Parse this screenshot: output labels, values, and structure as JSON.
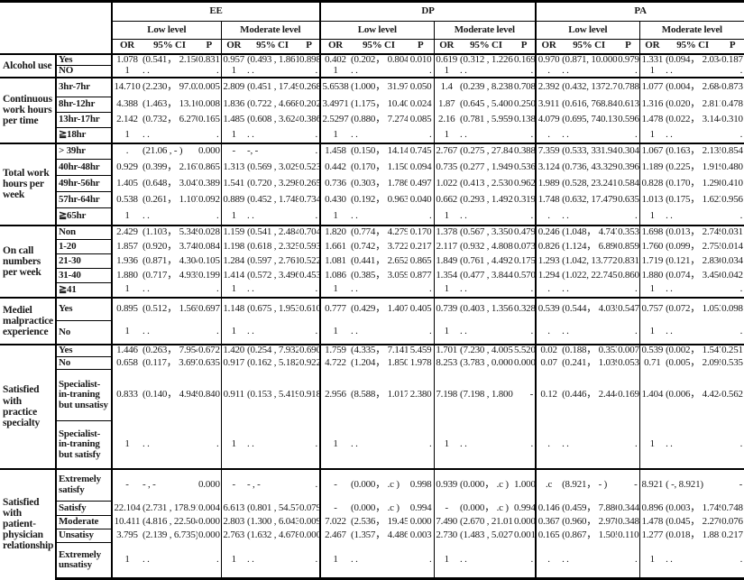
{
  "header": {
    "groups": [
      {
        "name": "EE",
        "levels": [
          "Low level",
          "Moderate level"
        ]
      },
      {
        "name": "DP",
        "levels": [
          "Low level",
          "Moderate level"
        ]
      },
      {
        "name": "PA",
        "levels": [
          "Low level",
          "Moderate level"
        ]
      }
    ],
    "col_headers": [
      "OR",
      "95% CI",
      "P"
    ]
  },
  "sections": [
    {
      "label": "Alcohol use",
      "rows": [
        {
          "sub": "Yes",
          "cells": [
            [
              "1.078",
              "(0.541， 2.150)",
              "0.831"
            ],
            [
              "0.957",
              "(0.493 , 1.861)",
              "0.898"
            ],
            [
              "0.402",
              "(0.202， 0.804)",
              "0.010"
            ],
            [
              "0.619",
              "(0.312 , 1.226)",
              "0.169"
            ],
            [
              "0.970",
              "(0.871, 10.000)",
              "0.979"
            ],
            [
              "1.331",
              "(0.094， 2.034)",
              "0.187"
            ]
          ]
        },
        {
          "sub": "NO",
          "cells": [
            [
              "1",
              ".  .",
              "."
            ],
            [
              "1",
              ".  .",
              "."
            ],
            [
              "1",
              ".  .",
              "."
            ],
            [
              "1",
              ".  .",
              "."
            ],
            [
              ".",
              ".  .",
              "."
            ],
            [
              "1",
              ".  .",
              "."
            ]
          ]
        }
      ]
    },
    {
      "label": "Continuous work hours per time",
      "rows": [
        {
          "sub": "3hr-7hr",
          "cells": [
            [
              "14.710",
              "(2.230， 97.02)",
              "0.005"
            ],
            [
              "2.809",
              "(0.451 , 17.49)",
              "0.268"
            ],
            [
              "5.6538",
              "(1.000， 31.979)",
              "0.050"
            ],
            [
              "1.4",
              "(0.239 , 8.238)",
              "0.708"
            ],
            [
              "2.392",
              "(0.432, 1372.7)",
              "0.788"
            ],
            [
              "1.077",
              "(0.004， 2.684)",
              "0.873"
            ]
          ]
        },
        {
          "sub": "8hr-12hr",
          "cells": [
            [
              "4.388",
              "(1.463， 13.16)",
              "0.008"
            ],
            [
              "1.836",
              "(0.722 , 4.668)",
              "0.202"
            ],
            [
              "3.4971",
              "(1.175， 10.407)",
              "0.024"
            ],
            [
              "1.87",
              "(0.645 , 5.400)",
              "0.250"
            ],
            [
              "3.911",
              "(0.616, 768.84)",
              "0.613"
            ],
            [
              "1.316",
              "(0.020， 2.811)",
              "0.478"
            ]
          ]
        },
        {
          "sub": "13hr-17hr",
          "cells": [
            [
              "2.142",
              "(0.732， 6.270)",
              "0.165"
            ],
            [
              "1.485",
              "(0.608 , 3.624)",
              "0.386"
            ],
            [
              "2.5297",
              "(0.880， 7.274)",
              "0.085"
            ],
            [
              "2.16",
              "(0.781 , 5.959)",
              "0.138"
            ],
            [
              "4.079",
              "(0.695, 740.13)",
              "0.596"
            ],
            [
              "1.478",
              "(0.022， 3.144)",
              "0.310"
            ]
          ]
        },
        {
          "sub": "≧18hr",
          "cells": [
            [
              "1",
              ".  .",
              "."
            ],
            [
              "1",
              ".  .",
              "."
            ],
            [
              "1",
              ".  .",
              "."
            ],
            [
              "1",
              ".  .",
              "."
            ],
            [
              ".",
              ".  .",
              "."
            ],
            [
              "1",
              ".  .",
              "."
            ]
          ]
        }
      ]
    },
    {
      "label": "Total work hours per week",
      "rows": [
        {
          "sub": "> 39hr",
          "cells": [
            [
              ".",
              "(21.06 ,  -  )",
              "0.000"
            ],
            [
              "-",
              "-,   -",
              "."
            ],
            [
              "1.458",
              "(0.150， 14.14)",
              "0.745"
            ],
            [
              "2.767",
              "(0.275 , 27.84)",
              "0.388"
            ],
            [
              "7.359",
              "(0.533, 331.94)",
              "0.304"
            ],
            [
              "1.067",
              "(0.163， 2.135)",
              "0.854"
            ]
          ]
        },
        {
          "sub": "40hr-48hr",
          "cells": [
            [
              "0.929",
              "(0.399， 2.167)",
              "0.865"
            ],
            [
              "1.313",
              "(0.569 , 3.029)",
              "0.523"
            ],
            [
              "0.442",
              "(0.170， 1.150)",
              "0.094"
            ],
            [
              "0.735",
              "(0.277 , 1.949)",
              "0.536"
            ],
            [
              "3.124",
              "(0.736, 43.329)",
              "0.396"
            ],
            [
              "1.189",
              "(0.225， 1.919)",
              "0.480"
            ]
          ]
        },
        {
          "sub": "49hr-56hr",
          "cells": [
            [
              "1.405",
              "(0.648， 3.047)",
              "0.389"
            ],
            [
              "1.541",
              "(0.720 , 3.298)",
              "0.265"
            ],
            [
              "0.736",
              "(0.303， 1.786)",
              "0.497"
            ],
            [
              "1.022",
              "(0.413 , 2.530)",
              "0.962"
            ],
            [
              "1.989",
              "(0.528, 23.241)",
              "0.584"
            ],
            [
              "0.828",
              "(0.170， 1.298)",
              "0.410"
            ]
          ]
        },
        {
          "sub": "57hr-64hr",
          "cells": [
            [
              "0.538",
              "(0.261， 1.107)",
              "0.092"
            ],
            [
              "0.889",
              "(0.452 , 1.748)",
              "0.734"
            ],
            [
              "0.430",
              "(0.192， 0.963)",
              "0.040"
            ],
            [
              "0.662",
              "(0.293 , 1.492)",
              "0.319"
            ],
            [
              "1.748",
              "(0.632, 17.479)",
              "0.635"
            ],
            [
              "1.013",
              "(0.175， 1.623)",
              "0.956"
            ]
          ]
        },
        {
          "sub": "≧65hr",
          "cells": [
            [
              "1",
              ".  .",
              "."
            ],
            [
              "1",
              ".  .",
              "."
            ],
            [
              "1",
              ".  .",
              "."
            ],
            [
              "1",
              ".  .",
              "."
            ],
            [
              ".",
              ".  .",
              "."
            ],
            [
              "1",
              ".  .",
              "."
            ]
          ]
        }
      ]
    },
    {
      "label": "On call numbers per week",
      "rows": [
        {
          "sub": "Non",
          "cells": [
            [
              "2.429",
              "(1.103， 5.349)",
              "0.028"
            ],
            [
              "1.159",
              "(0.541 , 2.484)",
              "0.704"
            ],
            [
              "1.820",
              "(0.774， 4.279)",
              "0.170"
            ],
            [
              "1.378",
              "(0.567 , 3.350)",
              "0.479"
            ],
            [
              "0.246",
              "(1.048， 4.747)",
              "0.353"
            ],
            [
              "1.698",
              "(0.013， 2.749)",
              "0.031"
            ]
          ]
        },
        {
          "sub": "1-20",
          "cells": [
            [
              "1.857",
              "(0.920， 3.748)",
              "0.084"
            ],
            [
              "1.198",
              "(0.618 , 2.325)",
              "0.593"
            ],
            [
              "1.661",
              "(0.742， 3.722)",
              "0.217"
            ],
            [
              "2.117",
              "(0.932 , 4.808)",
              "0.073"
            ],
            [
              "0.826",
              "(1.124， 6.890)",
              "0.859"
            ],
            [
              "1.760",
              "(0.099， 2.755)",
              "0.014"
            ]
          ]
        },
        {
          "sub": "21-30",
          "cells": [
            [
              "1.936",
              "(0.871， 4.304)",
              "0.105"
            ],
            [
              "1.284",
              "(0.597 , 2.761)",
              "0.522"
            ],
            [
              "1.081",
              "(0.441， 2.652)",
              "0.865"
            ],
            [
              "1.849",
              "(0.761 , 4.492)",
              "0.175"
            ],
            [
              "1.293",
              "(1.042, 13.772)",
              "0.831"
            ],
            [
              "1.719",
              "(0.121， 2.836)",
              "0.034"
            ]
          ]
        },
        {
          "sub": "31-40",
          "cells": [
            [
              "1.880",
              "(0.717， 4.935)",
              "0.199"
            ],
            [
              "1.414",
              "(0.572 , 3.496)",
              "0.453"
            ],
            [
              "1.086",
              "(0.385， 3.059)",
              "0.877"
            ],
            [
              "1.354",
              "(0.477 , 3.844)",
              "0.570"
            ],
            [
              "1.294",
              "(1.022, 22.745)",
              "0.860"
            ],
            [
              "1.880",
              "(0.074， 3.456)",
              "0.042"
            ]
          ]
        },
        {
          "sub": "≧41",
          "cells": [
            [
              "1",
              ".  .",
              "."
            ],
            [
              "1",
              ".  .",
              "."
            ],
            [
              "1",
              ".  .",
              "."
            ],
            [
              "1",
              ".  .",
              "."
            ],
            [
              ".",
              ".  .",
              "."
            ],
            [
              "1",
              ".  .",
              "."
            ]
          ]
        }
      ]
    },
    {
      "label": "Mediel malpractice experience",
      "rows": [
        {
          "sub": "Yes",
          "cells": [
            [
              "0.895",
              "(0.512， 1.565)",
              "0.697"
            ],
            [
              "1.148",
              "(0.675 , 1.953)",
              "0.610"
            ],
            [
              "0.777",
              "(0.429， 1.407)",
              "0.405"
            ],
            [
              "0.739",
              "(0.403 , 1.356)",
              "0.328"
            ],
            [
              "0.539",
              "(0.544， 4.035)",
              "0.547"
            ],
            [
              "0.757",
              "(0.072， 1.053)",
              "0.098"
            ]
          ]
        },
        {
          "sub": "No",
          "cells": [
            [
              "1",
              ".  .",
              "."
            ],
            [
              "1",
              ".  .",
              "."
            ],
            [
              "1",
              ".  .",
              "."
            ],
            [
              "1",
              ".  .",
              "."
            ],
            [
              ".",
              ".  .",
              "."
            ],
            [
              "1",
              ".  .",
              "."
            ]
          ]
        }
      ]
    },
    {
      "label": "Satisfied with practice specialty",
      "rows": [
        {
          "sub": "Yes",
          "cells": [
            [
              "1.446",
              "(0.263， 7.954)",
              "0.672"
            ],
            [
              "1.420",
              "(0.254 , 7.932)",
              "0.690"
            ],
            [
              "1.759",
              "(4.335， 7.141)",
              "5.459"
            ],
            [
              "1.701",
              "(7.230 , 4.005)",
              "5.520"
            ],
            [
              "0.02",
              "(0.188， 0.353)",
              "0.007"
            ],
            [
              "0.539",
              "(0.002， 1.547)",
              "0.251"
            ]
          ]
        },
        {
          "sub": "No",
          "cells": [
            [
              "0.658",
              "(0.117， 3.697)",
              "0.635"
            ],
            [
              "0.917",
              "(0.162 , 5.182)",
              "0.922"
            ],
            [
              "4.722",
              "(1.204， 1.850)",
              "1.978"
            ],
            [
              "8.253",
              "(3.783 , 0.000)",
              "0.000"
            ],
            [
              "0.07",
              "(0.241， 1.039)",
              "0.053"
            ],
            [
              "0.71",
              "(0.005， 2.095)",
              "0.535"
            ]
          ]
        },
        {
          "sub": "Specialist-in-traning but unsatisy",
          "cells": [
            [
              "0.833",
              "(0.140， 4.949)",
              "0.840"
            ],
            [
              "0.911",
              "(0.153 , 5.419)",
              "0.918"
            ],
            [
              "2.956",
              "(8.588， 1.017)",
              "2.380"
            ],
            [
              "7.198",
              "(7.198 , 1.800)",
              "-"
            ],
            [
              "0.12",
              "(0.446， 2.444)",
              "0.169"
            ],
            [
              "1.404",
              "(0.006， 4.424)",
              "0.562"
            ]
          ]
        },
        {
          "sub": "Specialist-in-traning but satisfy",
          "cells": [
            [
              "1",
              ".  .",
              "."
            ],
            [
              "1",
              ".  .",
              "."
            ],
            [
              "1",
              ".  .",
              "."
            ],
            [
              "1",
              ".  .",
              "."
            ],
            [
              ".",
              ".  .",
              "."
            ],
            [
              "1",
              ".  .",
              "."
            ]
          ]
        }
      ]
    },
    {
      "label": "Satisfied with patient-physician relationship",
      "rows": [
        {
          "sub": "Extremely satisfy",
          "cells": [
            [
              "-",
              "-  ,  -",
              "0.000"
            ],
            [
              "-",
              "-  ,  -",
              "."
            ],
            [
              "-",
              "(0.000，  .c )",
              "0.998"
            ],
            [
              "0.939",
              "(0.000，  .c )",
              "1.000"
            ],
            [
              ".c",
              "(8.921，  -  )",
              "-"
            ],
            [
              "8.921",
              "(   -, 8.921)",
              "-"
            ]
          ]
        },
        {
          "sub": "Satisfy",
          "cells": [
            [
              "22.104",
              "(2.731 , 178.91)",
              "0.004"
            ],
            [
              "6.613",
              "(0.801 , 54.57)",
              "0.079"
            ],
            [
              "-",
              "(0.000，  .c )",
              "0.994"
            ],
            [
              "-",
              "(0.000，  .c )",
              "0.994"
            ],
            [
              "0.146",
              "(0.459， 7.886)",
              "0.344"
            ],
            [
              "0.896",
              "(0.003， 1.749)",
              "0.748"
            ]
          ]
        },
        {
          "sub": "Moderate",
          "cells": [
            [
              "10.411",
              "(4.816 , 22.504)",
              "0.000"
            ],
            [
              "2.803",
              "(1.300 , 6.043)",
              "0.009"
            ],
            [
              "7.022",
              "(2.536， 19.45)",
              "0.000"
            ],
            [
              "7.490",
              "(2.670 , 21.01)",
              "0.000"
            ],
            [
              "0.367",
              "(0.960， 2.978)",
              "0.348"
            ],
            [
              "1.478",
              "(0.045， 2.276)",
              "0.076"
            ]
          ]
        },
        {
          "sub": "Unsatisy",
          "cells": [
            [
              "3.795",
              "(2.139 ,  6.735)",
              "0.000"
            ],
            [
              "2.763",
              "(1.632 , 4.678)",
              "0.000"
            ],
            [
              "2.467",
              "(1.357， 4.486)",
              "0.003"
            ],
            [
              "2.730",
              "(1.483 , 5.027)",
              "0.001"
            ],
            [
              "0.165",
              "(0.867， 1.505)",
              "0.110"
            ],
            [
              "1.277",
              "(0.018， 1.881)",
              "0.217"
            ]
          ]
        },
        {
          "sub": "Extremely unsatisy",
          "cells": [
            [
              "1",
              ".  .",
              "."
            ],
            [
              "1",
              ".  .",
              "."
            ],
            [
              "1",
              ".  .",
              "."
            ],
            [
              "1",
              ".  .",
              "."
            ],
            [
              ".",
              ".  .",
              "."
            ],
            [
              "1",
              ".  .",
              "."
            ]
          ]
        }
      ]
    }
  ]
}
